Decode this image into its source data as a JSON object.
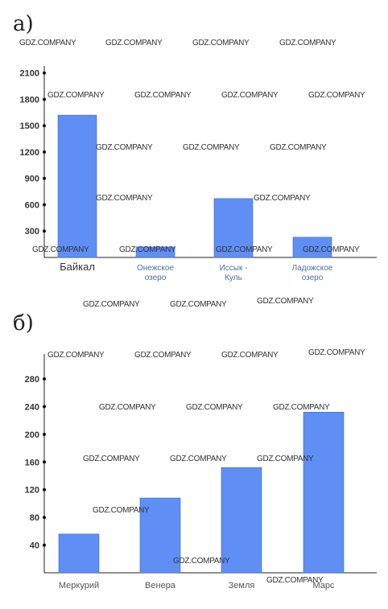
{
  "watermark_text": "GDZ.COMPANY",
  "chart_data": [
    {
      "type": "bar",
      "panel_label": "а)",
      "categories": [
        "Байкал",
        "Онежское озеро",
        "Иссык-Куль",
        "Ладожское озеро"
      ],
      "category_lines": [
        [
          "Байкал"
        ],
        [
          "Онежское",
          "озеро"
        ],
        [
          "Иссык -",
          "Куль"
        ],
        [
          "Ладожское",
          "озеро"
        ]
      ],
      "values": [
        1620,
        120,
        670,
        230
      ],
      "yticks": [
        300,
        600,
        900,
        1200,
        1500,
        1800,
        2100
      ],
      "ylim": [
        0,
        2180
      ],
      "bar_color": "#5f8ff5"
    },
    {
      "type": "bar",
      "panel_label": "б)",
      "categories": [
        "Меркурий",
        "Венера",
        "Земля",
        "Марс"
      ],
      "values": [
        56,
        108,
        152,
        232
      ],
      "yticks": [
        40,
        80,
        120,
        160,
        200,
        240,
        280
      ],
      "ylim": [
        0,
        316
      ],
      "bar_color": "#5f8ff5"
    }
  ]
}
